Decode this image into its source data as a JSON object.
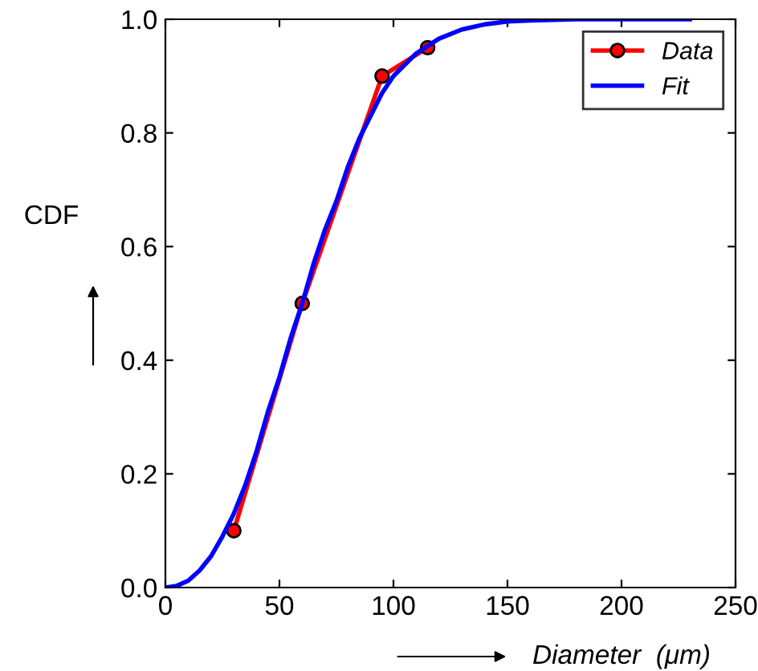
{
  "chart_data": {
    "type": "line",
    "xlabel": "Diameter  (μm)",
    "ylabel": "CDF",
    "xlim": [
      0,
      250
    ],
    "xticks": [
      0,
      50,
      100,
      150,
      200,
      250
    ],
    "ylim": [
      0,
      1.0
    ],
    "yticks": [
      {
        "value": 0,
        "label": "0.0"
      },
      {
        "value": 0.2,
        "label": "0.2"
      },
      {
        "value": 0.4,
        "label": "0.4"
      },
      {
        "value": 0.6,
        "label": "0.6"
      },
      {
        "value": 0.8,
        "label": "0.8"
      },
      {
        "value": 1.0,
        "label": "1.0"
      }
    ],
    "legend": "top right",
    "grid": false,
    "series": [
      {
        "name": "Data",
        "color": "#ff0000",
        "marker": "circle",
        "x": [
          30,
          60,
          95,
          115
        ],
        "values": [
          0.1,
          0.5,
          0.9,
          0.95
        ]
      },
      {
        "name": "Fit",
        "color": "#0000ff",
        "marker": "none",
        "x": [
          0,
          5,
          10,
          15,
          20,
          25,
          30,
          35,
          40,
          45,
          50,
          55,
          60,
          65,
          70,
          75,
          80,
          85,
          90,
          95,
          100,
          110,
          120,
          130,
          140,
          150,
          160,
          170,
          180,
          200,
          230
        ],
        "values": [
          0,
          0.003,
          0.012,
          0.03,
          0.055,
          0.09,
          0.13,
          0.18,
          0.24,
          0.31,
          0.37,
          0.44,
          0.5,
          0.57,
          0.63,
          0.68,
          0.74,
          0.79,
          0.83,
          0.87,
          0.9,
          0.94,
          0.966,
          0.982,
          0.991,
          0.996,
          0.998,
          0.999,
          1.0,
          1.0,
          1.0
        ]
      }
    ]
  }
}
